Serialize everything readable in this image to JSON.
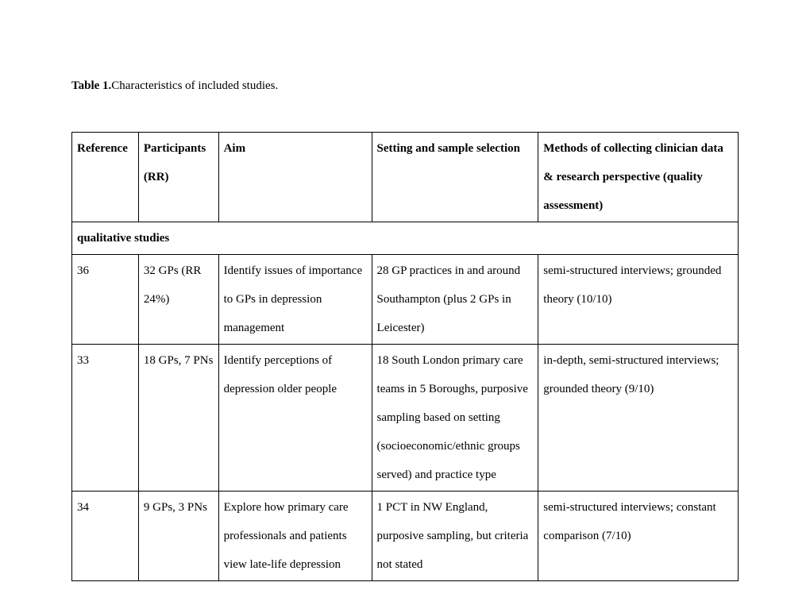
{
  "caption": {
    "label": "Table 1.",
    "text": "Characteristics of included studies."
  },
  "table": {
    "headers": {
      "reference": "Reference",
      "participants": "Participants (RR)",
      "aim": "Aim",
      "setting": "Setting and sample selection",
      "methods": "Methods of collecting clinician data & research perspective (quality assessment)"
    },
    "section_label": "qualitative studies",
    "rows": [
      {
        "reference": "36",
        "participants": "32 GPs (RR 24%)",
        "aim": "Identify issues of importance to GPs in depression management",
        "setting": "28 GP practices in and around Southampton (plus 2 GPs in Leicester)",
        "methods": "semi-structured interviews; grounded theory (10/10)"
      },
      {
        "reference": "33",
        "participants": "18 GPs, 7 PNs",
        "aim": "Identify perceptions of depression older people",
        "setting": "18 South London primary care teams in 5 Boroughs, purposive sampling based on setting (socioeconomic/ethnic groups served) and practice type",
        "methods": "in-depth, semi-structured interviews; grounded theory (9/10)"
      },
      {
        "reference": "34",
        "participants": "9 GPs, 3 PNs",
        "aim": "Explore how primary care professionals and patients view late-life depression",
        "setting": "1 PCT in NW England, purposive sampling, but criteria not stated",
        "methods": "semi-structured interviews; constant comparison (7/10)"
      }
    ]
  }
}
